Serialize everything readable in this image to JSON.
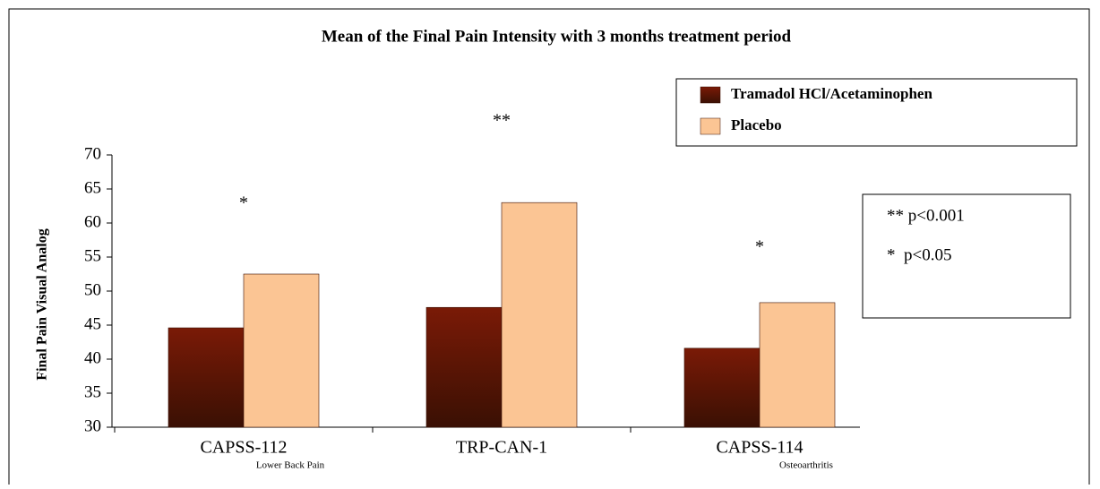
{
  "chart_data": {
    "type": "bar",
    "title": "Mean of the Final Pain Intensity with 3 months treatment period",
    "y_label": "Final Pain Visual Analog",
    "categories": [
      "CAPSS-112",
      "TRP-CAN-1",
      "CAPSS-114"
    ],
    "category_notes": [
      "Lower Back Pain",
      null,
      "Osteoarthritis"
    ],
    "series": [
      {
        "name": "Tramadol HCl/Acetaminophen",
        "color": "#7a1a06",
        "values": [
          44.6,
          47.6,
          41.6
        ]
      },
      {
        "name": "Placebo",
        "color": "#fbc594",
        "values": [
          52.5,
          63.0,
          48.3
        ]
      }
    ],
    "annotations": [
      "*",
      "**",
      "*"
    ],
    "significance_notes": [
      "** p<0.001",
      "*  p<0.05"
    ],
    "ylim": [
      30,
      70
    ],
    "yticks": [
      30,
      35,
      40,
      45,
      50,
      55,
      60,
      65,
      70
    ]
  }
}
